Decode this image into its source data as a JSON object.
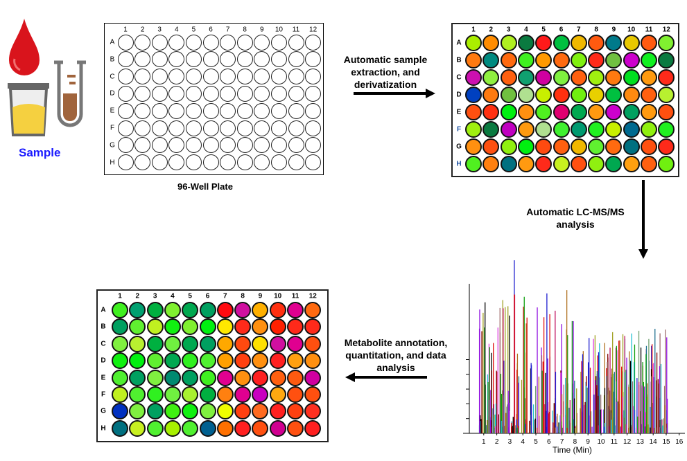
{
  "sample": {
    "label": "Sample",
    "label_color": "#1a1aff"
  },
  "empty_plate": {
    "caption": "96-Well Plate",
    "rows": [
      "A",
      "B",
      "C",
      "D",
      "E",
      "F",
      "G",
      "H"
    ],
    "cols": [
      "1",
      "2",
      "3",
      "4",
      "5",
      "6",
      "7",
      "8",
      "9",
      "10",
      "11",
      "12"
    ]
  },
  "step1": {
    "lines": [
      "Automatic sample",
      "extraction, and",
      "derivatization"
    ]
  },
  "step2": {
    "lines": [
      "Automatic LC-MS/MS",
      "analysis"
    ]
  },
  "step3": {
    "lines": [
      "Metabolite annotation,",
      "quantitation, and data",
      "analysis"
    ]
  },
  "plate_derivatized": {
    "rows": [
      "A",
      "B",
      "C",
      "D",
      "E",
      "F",
      "G",
      "H"
    ],
    "cols": [
      "1",
      "2",
      "3",
      "4",
      "5",
      "6",
      "7",
      "8",
      "9",
      "10",
      "11",
      "12"
    ],
    "row_label_colors": [
      "#000",
      "#000",
      "#000",
      "#000",
      "#000",
      "#1a4fa0",
      "#000",
      "#1a4fa0"
    ],
    "colors": [
      [
        "#aaee00",
        "#ff8c00",
        "#b0f020",
        "#0a7a40",
        "#ff1a1a",
        "#00c040",
        "#f0b800",
        "#ff5a10",
        "#007a8a",
        "#e8c800",
        "#ff5a10",
        "#80f030"
      ],
      [
        "#ff7a10",
        "#008a80",
        "#ff6a10",
        "#40f020",
        "#ff9a00",
        "#ff6a10",
        "#80f010",
        "#ff2a1a",
        "#70c040",
        "#cc00cc",
        "#10f020",
        "#0a7a40"
      ],
      [
        "#cc10b0",
        "#90f040",
        "#ff6010",
        "#10a070",
        "#d000a0",
        "#80f040",
        "#ff6010",
        "#a0f010",
        "#ff7a10",
        "#00e020",
        "#ff9a10",
        "#ff2a1a"
      ],
      [
        "#0040c0",
        "#ff7a10",
        "#70c040",
        "#b0e090",
        "#c8f000",
        "#ff3010",
        "#70f010",
        "#e8d000",
        "#00c040",
        "#ff8a10",
        "#ff6010",
        "#b8f030"
      ],
      [
        "#ff5010",
        "#ff3010",
        "#00f010",
        "#ff9010",
        "#50f020",
        "#e00070",
        "#00a850",
        "#ff9a10",
        "#cc00cc",
        "#00a060",
        "#ff9a10",
        "#ff5010"
      ],
      [
        "#a0f010",
        "#0a7a40",
        "#c000c0",
        "#ff9a10",
        "#b0e090",
        "#40f030",
        "#009a70",
        "#20f020",
        "#c8f000",
        "#006a90",
        "#90f010",
        "#20f020"
      ],
      [
        "#ff9010",
        "#ff5010",
        "#90f010",
        "#00f010",
        "#ff4a10",
        "#ff6010",
        "#f0b800",
        "#60f030",
        "#ff6a10",
        "#007080",
        "#ff5010",
        "#ff2a1a"
      ],
      [
        "#50f020",
        "#ff8010",
        "#007080",
        "#ff9a10",
        "#ff2a1a",
        "#c8f020",
        "#ff5010",
        "#90f010",
        "#00a850",
        "#ffa010",
        "#ff6010",
        "#70f010"
      ]
    ]
  },
  "plate_results": {
    "rows": [
      "A",
      "B",
      "C",
      "D",
      "E",
      "F",
      "G",
      "H"
    ],
    "cols": [
      "1",
      "2",
      "3",
      "4",
      "5",
      "6",
      "7",
      "8",
      "9",
      "10",
      "11",
      "12"
    ],
    "colors": [
      [
        "#40f020",
        "#00a070",
        "#00b040",
        "#80f030",
        "#00a850",
        "#00a060",
        "#ff0a10",
        "#d010a0",
        "#ffb000",
        "#ff3010",
        "#e00090",
        "#ff6a10"
      ],
      [
        "#00a060",
        "#60f030",
        "#c0f020",
        "#10f010",
        "#80f030",
        "#00f010",
        "#ffe800",
        "#ff2a1a",
        "#ff9010",
        "#ff2000",
        "#ff2a1a",
        "#ff2a1a"
      ],
      [
        "#80f040",
        "#b8f030",
        "#00b040",
        "#70f040",
        "#00a850",
        "#00a060",
        "#ffa800",
        "#ff4a10",
        "#ffe000",
        "#d010a0",
        "#e00090",
        "#ff5010"
      ],
      [
        "#10f010",
        "#00f010",
        "#60f030",
        "#00a850",
        "#30f020",
        "#50f030",
        "#ffa000",
        "#ff4010",
        "#ff9010",
        "#ff2020",
        "#ffa010",
        "#ff9010"
      ],
      [
        "#50f030",
        "#00a060",
        "#80f040",
        "#008a70",
        "#00a060",
        "#40f020",
        "#e00090",
        "#ff9010",
        "#ff2020",
        "#ff6010",
        "#ff5a10",
        "#d000a0"
      ],
      [
        "#c0f020",
        "#50f030",
        "#30f020",
        "#70f040",
        "#a8f030",
        "#00b040",
        "#ff8010",
        "#e00090",
        "#c800c0",
        "#ffa810",
        "#ff5010",
        "#ff5010"
      ],
      [
        "#0030c0",
        "#80f040",
        "#00a060",
        "#40f010",
        "#10f010",
        "#80f040",
        "#f0ff00",
        "#ff4010",
        "#ff6a20",
        "#ff2020",
        "#ff4010",
        "#ff3020"
      ],
      [
        "#007080",
        "#c8f020",
        "#50f030",
        "#a8f000",
        "#50f030",
        "#006090",
        "#ff7000",
        "#ff2020",
        "#ff5010",
        "#d00090",
        "#ff5010",
        "#ff2020"
      ]
    ]
  },
  "chromatogram": {
    "xlabel": "Time (Min)",
    "xticks": [
      "1",
      "2",
      "3",
      "4",
      "5",
      "6",
      "7",
      "8",
      "9",
      "10",
      "11",
      "12",
      "13",
      "14",
      "15",
      "16"
    ]
  }
}
